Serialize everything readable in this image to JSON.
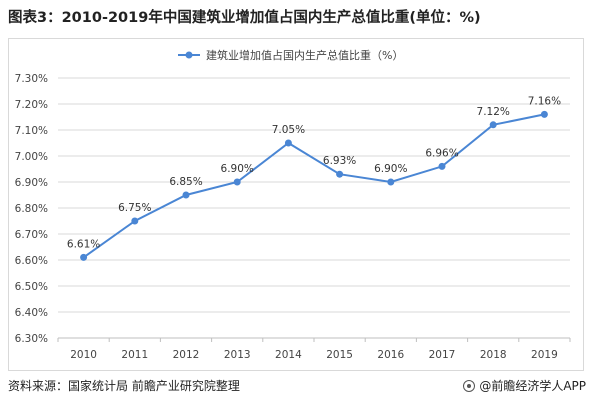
{
  "title": "图表3：2010-2019年中国建筑业增加值占国内生产总值比重(单位：%)",
  "footer": {
    "source": "资料来源：国家统计局 前瞻产业研究院整理",
    "brand": "@前瞻经济学人APP"
  },
  "colors": {
    "line": "#4a86d4",
    "grid": "#d9d9d9",
    "axis": "#bfbfbf"
  },
  "chart_data": {
    "type": "line",
    "legend_position": "top",
    "grid": "horizontal",
    "categories": [
      "2010",
      "2011",
      "2012",
      "2013",
      "2014",
      "2015",
      "2016",
      "2017",
      "2018",
      "2019"
    ],
    "series": [
      {
        "name": "建筑业增加值占国内生产总值比重（%）",
        "values": [
          6.61,
          6.75,
          6.85,
          6.9,
          7.05,
          6.93,
          6.9,
          6.96,
          7.12,
          7.16
        ],
        "labels": [
          "6.61%",
          "6.75%",
          "6.85%",
          "6.90%",
          "7.05%",
          "6.93%",
          "6.90%",
          "6.96%",
          "7.12%",
          "7.16%"
        ]
      }
    ],
    "ylim": [
      6.3,
      7.3
    ],
    "yticks": [
      "6.30%",
      "6.40%",
      "6.50%",
      "6.60%",
      "6.70%",
      "6.80%",
      "6.90%",
      "7.00%",
      "7.10%",
      "7.20%",
      "7.30%"
    ]
  }
}
